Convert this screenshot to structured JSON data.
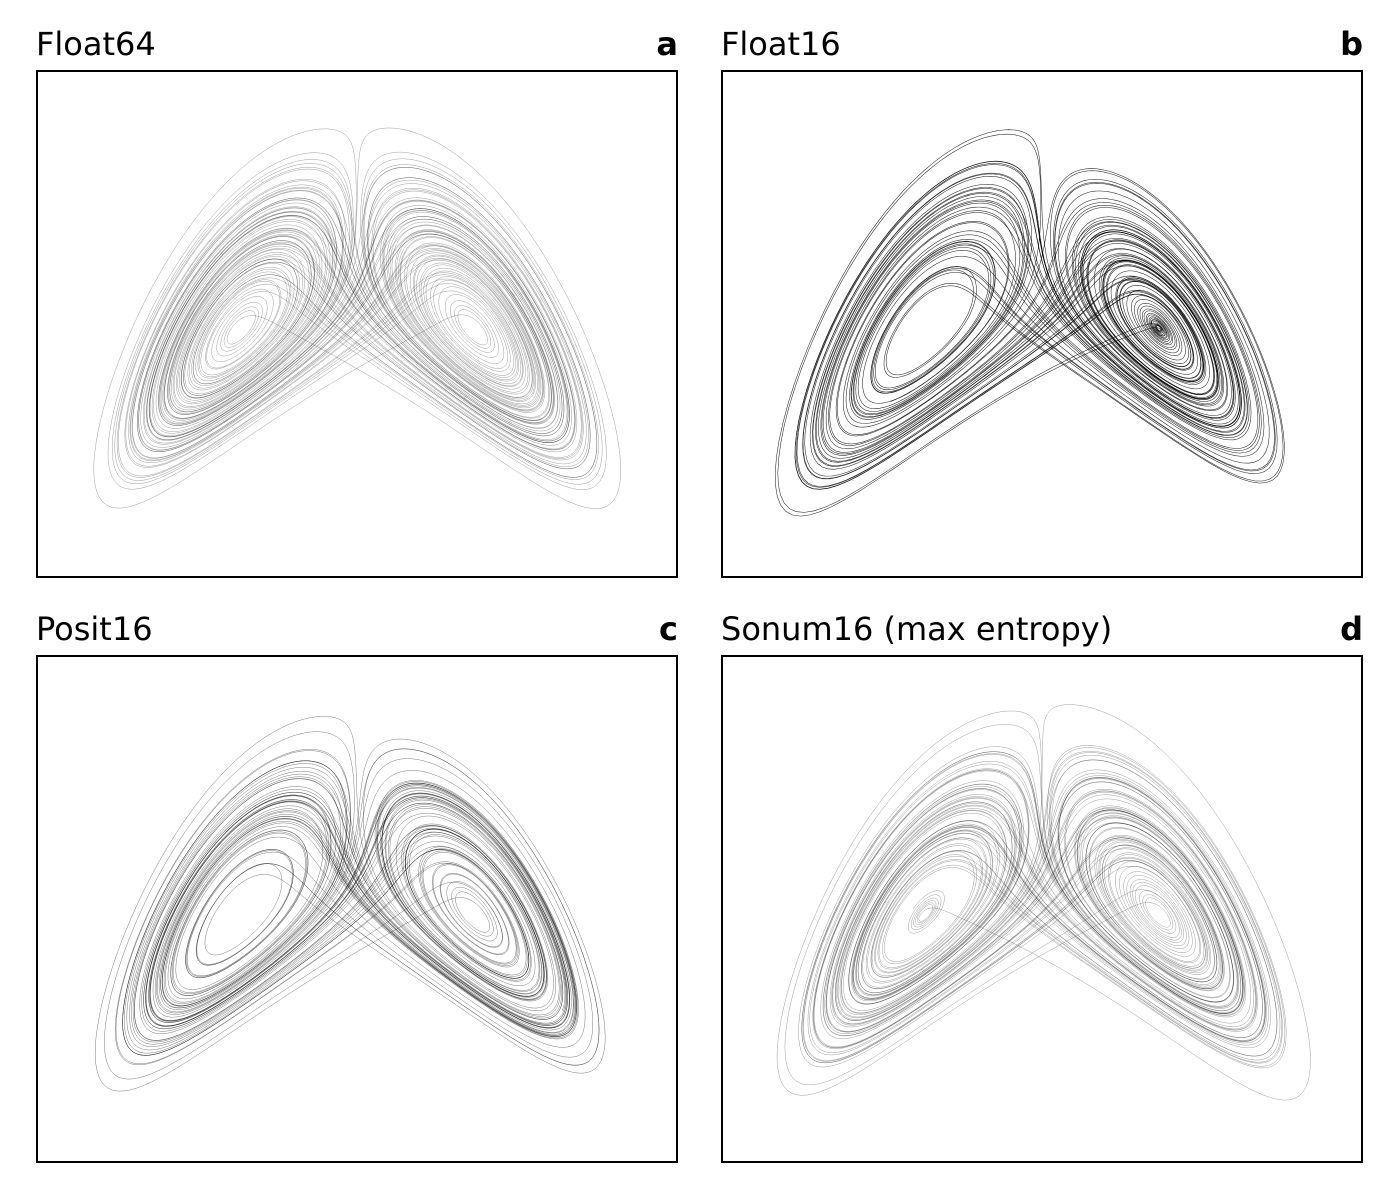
{
  "chart_data": [
    {
      "type": "line",
      "panel_label": "a",
      "title": "Float64",
      "xlabel": "",
      "ylabel": "",
      "ticks": "none",
      "grid": false,
      "attractor": "lorenz",
      "stroke_color": "#000000",
      "shading": "dense, continuous",
      "lobe_centers_visual": [
        "left",
        "right"
      ]
    },
    {
      "type": "line",
      "panel_label": "b",
      "title": "Float16",
      "xlabel": "",
      "ylabel": "",
      "ticks": "none",
      "grid": false,
      "attractor": "lorenz",
      "stroke_color": "#000000",
      "shading": "sparse, discrete orbits",
      "lobe_centers_visual": [
        "left",
        "right"
      ]
    },
    {
      "type": "line",
      "panel_label": "c",
      "title": "Posit16",
      "xlabel": "",
      "ylabel": "",
      "ticks": "none",
      "grid": false,
      "attractor": "lorenz",
      "stroke_color": "#000000",
      "shading": "dense, continuous",
      "lobe_centers_visual": [
        "left",
        "right"
      ]
    },
    {
      "type": "line",
      "panel_label": "d",
      "title": "Sonum16 (max entropy)",
      "xlabel": "",
      "ylabel": "",
      "ticks": "none",
      "grid": false,
      "attractor": "lorenz",
      "stroke_color": "#000000",
      "shading": "dense, continuous",
      "lobe_centers_visual": [
        "left",
        "right"
      ]
    }
  ]
}
